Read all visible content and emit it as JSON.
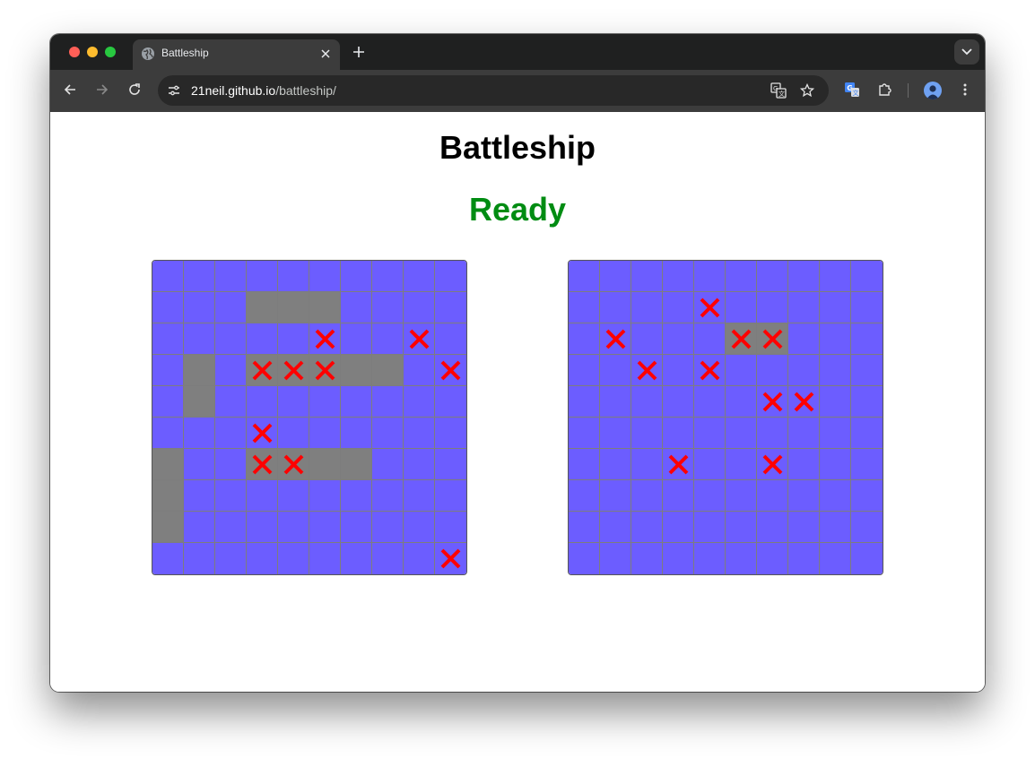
{
  "browser": {
    "tab_title": "Battleship",
    "url_host": "21neil.github.io",
    "url_path": "/battleship/",
    "icons": [
      "globe-icon",
      "close-icon",
      "plus-icon",
      "chevron-down-icon",
      "back-arrow-icon",
      "forward-arrow-icon",
      "reload-icon",
      "site-info-icon",
      "translate-icon",
      "star-icon",
      "google-translate-extension-icon",
      "extensions-puzzle-icon",
      "profile-avatar-icon",
      "more-vert-icon"
    ]
  },
  "page": {
    "title": "Battleship",
    "status": "Ready"
  },
  "colors": {
    "water": "#6c5dff",
    "ship": "#7f7f7f",
    "hit_marker": "#ff0000",
    "status": "#008c12"
  },
  "boards": [
    {
      "name": "player-board",
      "rows": [
        "..........",
        "...SSS....",
        ".....X..X.",
        ".S.HHHSS.X",
        ".S........",
        "...X......",
        "S..HHSS...",
        "S.........",
        "S.........",
        ".........X"
      ]
    },
    {
      "name": "enemy-board",
      "rows": [
        "..........",
        "....X.....",
        ".X...HH...",
        "..X.X.....",
        "......XX..",
        "..........",
        "...X..X...",
        "..........",
        "..........",
        ".........."
      ]
    }
  ]
}
